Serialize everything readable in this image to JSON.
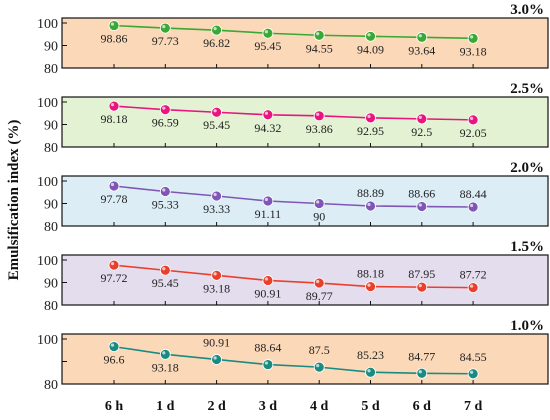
{
  "chart_data": {
    "type": "line",
    "ylabel": "Emulsification index  (%)",
    "categories": [
      "6 h",
      "1 d",
      "2 d",
      "3 d",
      "4 d",
      "5 d",
      "6 d",
      "7 d"
    ],
    "panels": [
      {
        "title": "3.0%",
        "values": [
          98.86,
          97.73,
          96.82,
          95.45,
          94.55,
          94.09,
          93.64,
          93.18
        ],
        "yticks": [
          "100",
          "90",
          "80"
        ],
        "ylim": [
          80,
          100
        ],
        "background": "#fbd9b8",
        "color": "#3aa835"
      },
      {
        "title": "2.5%",
        "values": [
          98.18,
          96.59,
          95.45,
          94.32,
          93.86,
          92.95,
          92.5,
          92.05
        ],
        "yticks": [
          "100",
          "90",
          "80"
        ],
        "ylim": [
          80,
          100
        ],
        "background": "#e2f2d2",
        "color": "#e8157f"
      },
      {
        "title": "2.0%",
        "values": [
          97.78,
          95.33,
          93.33,
          91.11,
          90,
          88.89,
          88.66,
          88.44
        ],
        "yticks": [
          "100",
          "90",
          "80"
        ],
        "ylim": [
          80,
          100
        ],
        "background": "#dcedf6",
        "color": "#7f56b5"
      },
      {
        "title": "1.5%",
        "values": [
          97.72,
          95.45,
          93.18,
          90.91,
          89.77,
          88.18,
          87.95,
          87.72
        ],
        "yticks": [
          "100",
          "90",
          "80"
        ],
        "ylim": [
          80,
          100
        ],
        "background": "#e4ddee",
        "color": "#e8402c"
      },
      {
        "title": "1.0%",
        "values": [
          96.6,
          93.18,
          90.91,
          88.64,
          87.5,
          85.23,
          84.77,
          84.55
        ],
        "yticks": [
          "100",
          "",
          "80"
        ],
        "ylim": [
          80,
          100
        ],
        "background": "#fbd9b8",
        "color": "#198b80"
      }
    ]
  }
}
